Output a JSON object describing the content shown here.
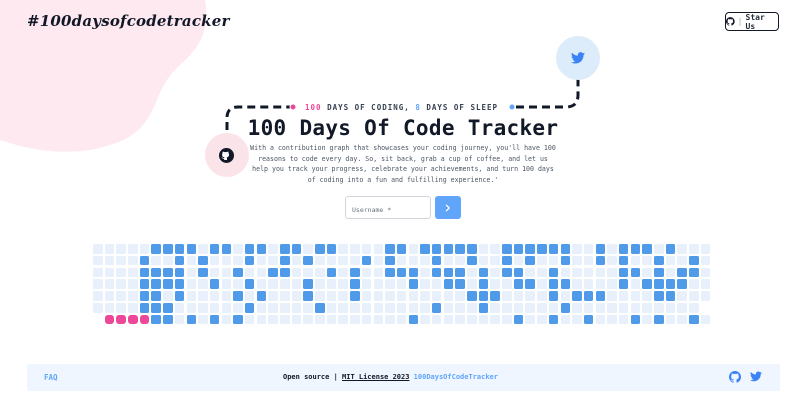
{
  "header": {
    "brand": "#100daysofcodetracker",
    "star_button": {
      "label": "Star Us",
      "separator": "|",
      "icon": "github-icon"
    }
  },
  "hero": {
    "tagline": {
      "count_a": "100",
      "text_a": "DAYS OF CODING,",
      "count_b": "8",
      "text_b": "DAYS OF SLEEP"
    },
    "title": "100 Days Of Code Tracker",
    "description": "With a contribution graph that showcases your coding journey, you'll have 100 reasons to code every day. So, sit back, grab a cup of coffee, and let us help you track your progress, celebrate your achievements, and turn 100 days of coding into a fun and fulfilling experience.'",
    "icons": [
      "github-icon",
      "twitter-icon"
    ]
  },
  "search": {
    "placeholder": "Username *",
    "value": "",
    "submit_icon": "chevron-right-icon"
  },
  "contribution_graph": {
    "rows": 7,
    "weeks": 53,
    "active_mask": [
      ".....####.##.##.##.##....##.#####..######..#.###.#...",
      "....#..#.#...#..#.#....#.#...#..#..#.#..#..#.#..#..#.",
      "....####.#..#..##...#.#..###.###.#.##..#.....##.#.##.",
      "....####..#..#....#...#....#..##.#..##.##....#.####..",
      "....##.#....#.#...#...#.........###....#.###....##...",
      "....###......#.....#.........#...#......#...........",
      "....###.#.#.#..............#........#..#..#...#.#..#."
    ],
    "highlighted_days": 4,
    "colors": {
      "active": "#4f9ae9",
      "empty": "#e8f0fb",
      "highlight": "#ec4899"
    }
  },
  "footer": {
    "faq": "FAQ",
    "open_source": "Open source",
    "separator": "|",
    "license": "MIT License 2023",
    "hashtag": "100DaysOfCodeTracker",
    "icons": [
      "github-icon",
      "twitter-icon"
    ]
  }
}
